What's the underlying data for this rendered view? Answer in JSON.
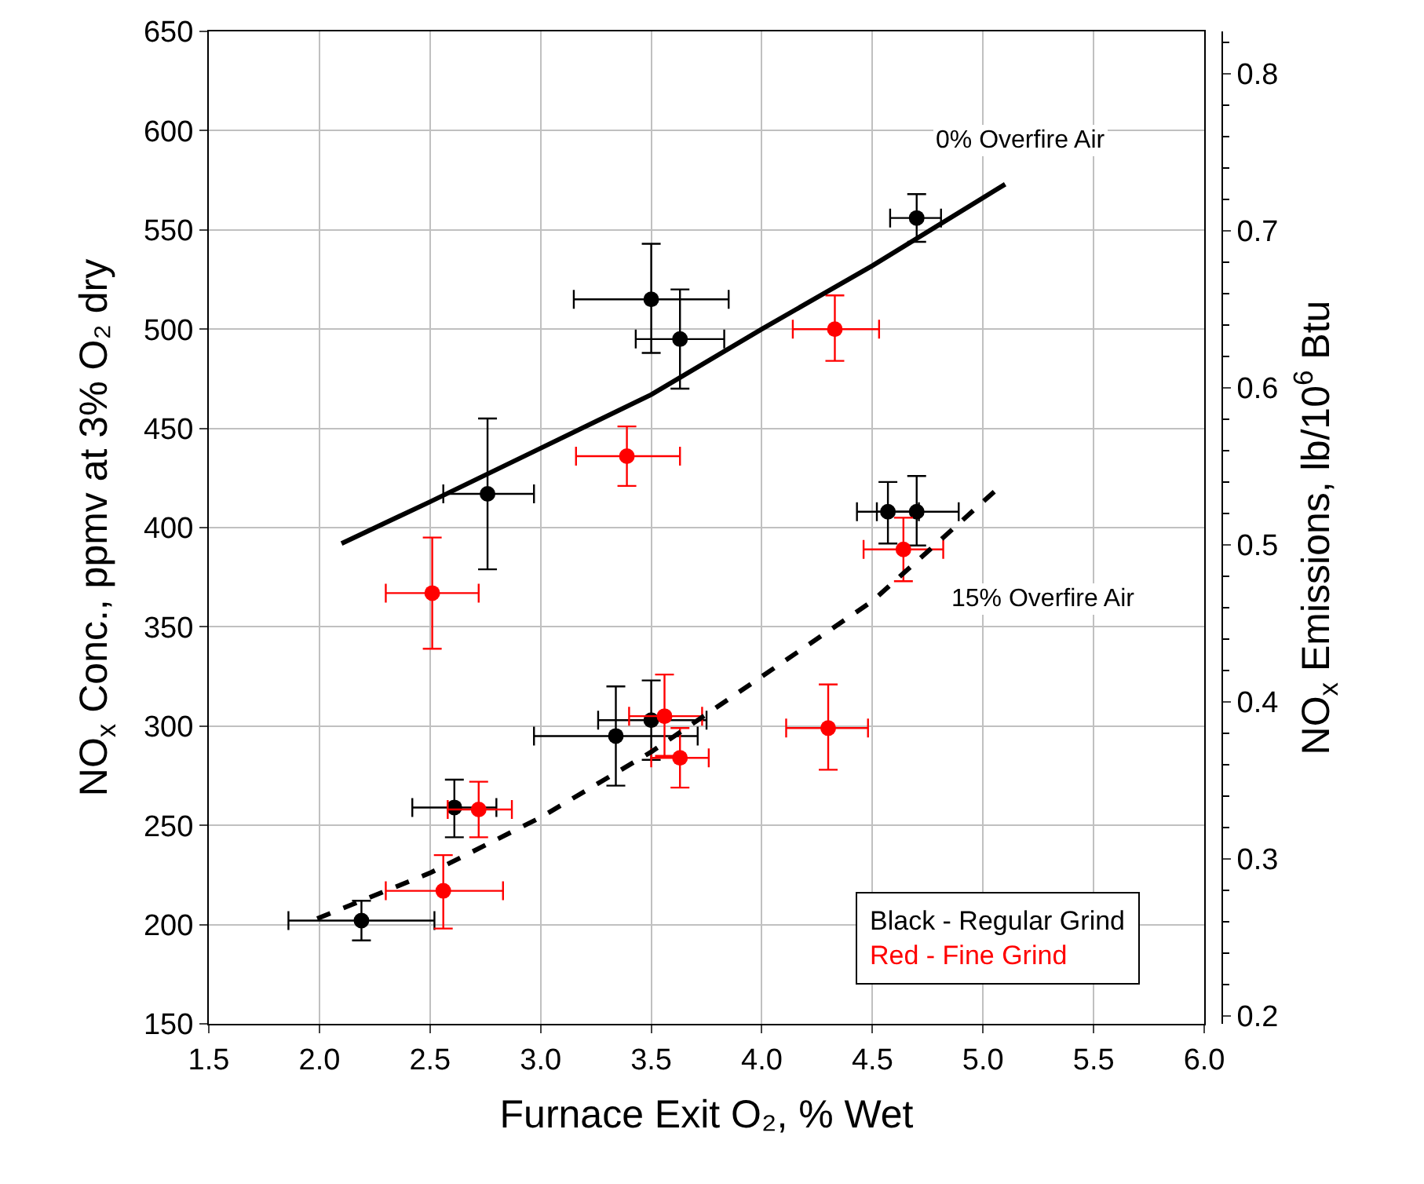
{
  "chart_data": {
    "type": "scatter",
    "xlabel": "Furnace Exit O₂, % Wet",
    "ylabel": "NO$_{x}$ Conc., ppmv at 3% O₂ dry",
    "y2label": "NO$_{x}$ Emissions, lb/10$^{6}$ Btu",
    "xlim": [
      1.5,
      6.0
    ],
    "xticks": [
      {
        "value": 1.5,
        "label": "1.5"
      },
      {
        "value": 2,
        "label": "2.0"
      },
      {
        "value": 2.5,
        "label": "2.5"
      },
      {
        "value": 3,
        "label": "3.0"
      },
      {
        "value": 3.5,
        "label": "3.5"
      },
      {
        "value": 4,
        "label": "4.0"
      },
      {
        "value": 4.5,
        "label": "4.5"
      },
      {
        "value": 5,
        "label": "5.0"
      },
      {
        "value": 5.5,
        "label": "5.5"
      },
      {
        "value": 6,
        "label": "6.0"
      }
    ],
    "ylim": [
      150,
      650
    ],
    "yticks": [
      150,
      200,
      250,
      300,
      350,
      400,
      450,
      500,
      550,
      600,
      650
    ],
    "y2lim": [
      0.195,
      0.827
    ],
    "y2ticks": [
      0.2,
      0.3,
      0.4,
      0.5,
      0.6,
      0.7,
      0.8
    ],
    "grid": true,
    "marker": "circle",
    "series": [
      {
        "color": "#000000",
        "x": [
          4.7,
          3.5,
          3.63,
          2.76,
          4.57,
          4.7,
          2.19,
          2.61,
          3.34,
          3.5
        ],
        "values": [
          556,
          515,
          495,
          417,
          408,
          408,
          202,
          259,
          295,
          303
        ],
        "errors": [
          [
            544,
            568
          ],
          [
            488,
            543
          ],
          [
            470,
            520
          ],
          [
            379,
            455
          ],
          [
            392,
            423
          ],
          [
            391,
            426
          ],
          [
            192,
            212
          ],
          [
            244,
            273
          ],
          [
            270,
            320
          ],
          [
            283,
            323
          ]
        ],
        "xerrors": [
          [
            4.58,
            4.81
          ],
          [
            3.15,
            3.85
          ],
          [
            3.43,
            3.83
          ],
          [
            2.56,
            2.97
          ],
          [
            4.43,
            4.71
          ],
          [
            4.52,
            4.89
          ],
          [
            1.86,
            2.52
          ],
          [
            2.42,
            2.8
          ],
          [
            2.97,
            3.71
          ],
          [
            3.26,
            3.75
          ]
        ]
      },
      {
        "color": "#ff0000",
        "x": [
          4.33,
          3.39,
          2.51,
          4.64,
          3.56,
          3.63,
          4.3,
          2.72,
          2.56
        ],
        "values": [
          500,
          436,
          367,
          389,
          305,
          284,
          299,
          258,
          217
        ],
        "errors": [
          [
            484,
            517
          ],
          [
            421,
            451
          ],
          [
            339,
            395
          ],
          [
            373,
            405
          ],
          [
            285,
            326
          ],
          [
            269,
            299
          ],
          [
            278,
            321
          ],
          [
            244,
            272
          ],
          [
            198,
            235
          ]
        ],
        "xerrors": [
          [
            4.14,
            4.53
          ],
          [
            3.16,
            3.63
          ],
          [
            2.3,
            2.72
          ],
          [
            4.46,
            4.82
          ],
          [
            3.4,
            3.73
          ],
          [
            3.5,
            3.76
          ],
          [
            4.11,
            4.48
          ],
          [
            2.58,
            2.87
          ],
          [
            2.3,
            2.83
          ]
        ]
      },
      {
        "type": "line",
        "name": "0% Overfire Air",
        "color": "#000000",
        "line_style": "solid",
        "marker": "none",
        "x": [
          2.1,
          2.5,
          3.0,
          3.5,
          4.0,
          4.5,
          5.1
        ],
        "values": [
          392,
          413,
          440,
          467,
          500,
          532,
          573
        ]
      },
      {
        "type": "line",
        "name": "15% Overfire Air",
        "color": "#000000",
        "line_style": "dashed",
        "marker": "none",
        "x": [
          1.99,
          2.5,
          3.0,
          3.5,
          4.0,
          4.5,
          5.06
        ],
        "values": [
          203,
          226,
          254,
          287,
          325,
          363,
          419
        ]
      }
    ],
    "annotations": [
      "Black - Regular Grind",
      "Red - Fine Grind"
    ]
  }
}
